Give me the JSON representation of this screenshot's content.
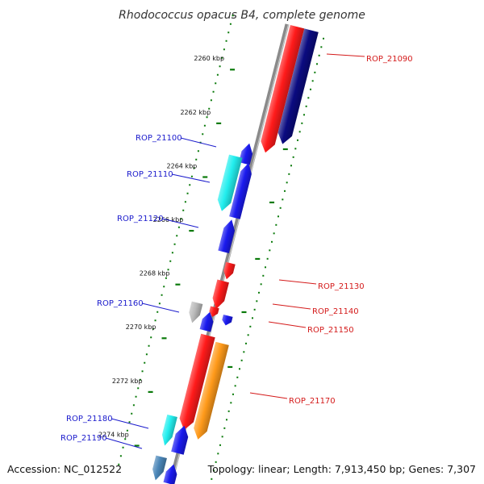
{
  "title": "Rhodococcus opacus B4, complete genome",
  "accession": "Accession: NC_012522",
  "summary": "Topology: linear; Length: 7,913,450 bp; Genes: 7,307",
  "colors": {
    "tick": "#0a7a0a",
    "backbone": "#8a8a8a",
    "label_left": "#1a1acc",
    "label_right": "#d41a1a"
  },
  "ticks": [
    {
      "label": "2260 kbp",
      "kbp": 2260
    },
    {
      "label": "2262 kbp",
      "kbp": 2262
    },
    {
      "label": "2264 kbp",
      "kbp": 2264
    },
    {
      "label": "2266 kbp",
      "kbp": 2266
    },
    {
      "label": "2268 kbp",
      "kbp": 2268
    },
    {
      "label": "2270 kbp",
      "kbp": 2270
    },
    {
      "label": "2272 kbp",
      "kbp": 2272
    },
    {
      "label": "2274 kbp",
      "kbp": 2274
    }
  ],
  "genes": [
    {
      "label": "ROP_21090",
      "side": "right",
      "color": "#ff1a1a"
    },
    {
      "label": "",
      "side": "right",
      "color": "#0a0a80"
    },
    {
      "label": "ROP_21100",
      "side": "left",
      "color": "#1a1aee"
    },
    {
      "label": "ROP_21110",
      "side": "left",
      "color": "#22eeee"
    },
    {
      "label": "",
      "side": "left",
      "color": "#1a1aee"
    },
    {
      "label": "ROP_21120",
      "side": "left",
      "color": "#1a1aee"
    },
    {
      "label": "ROP_21130",
      "side": "right",
      "color": "#ff1a1a"
    },
    {
      "label": "",
      "side": "right",
      "color": "#ff1a1a"
    },
    {
      "label": "ROP_21140",
      "side": "right",
      "color": "#ff1a1a"
    },
    {
      "label": "ROP_21150",
      "side": "right",
      "color": "#1a1aee"
    },
    {
      "label": "ROP_21160",
      "side": "left",
      "color": "#bbbbbb"
    },
    {
      "label": "",
      "side": "left",
      "color": "#1a1aee"
    },
    {
      "label": "",
      "side": "right",
      "color": "#ff1a1a"
    },
    {
      "label": "ROP_21170",
      "side": "right",
      "color": "#ff9a1a"
    },
    {
      "label": "ROP_21180",
      "side": "left",
      "color": "#22eeee"
    },
    {
      "label": "",
      "side": "left",
      "color": "#1a1aee"
    },
    {
      "label": "ROP_21190",
      "side": "left",
      "color": "#4a86b8"
    },
    {
      "label": "",
      "side": "left",
      "color": "#1a1aee"
    }
  ]
}
